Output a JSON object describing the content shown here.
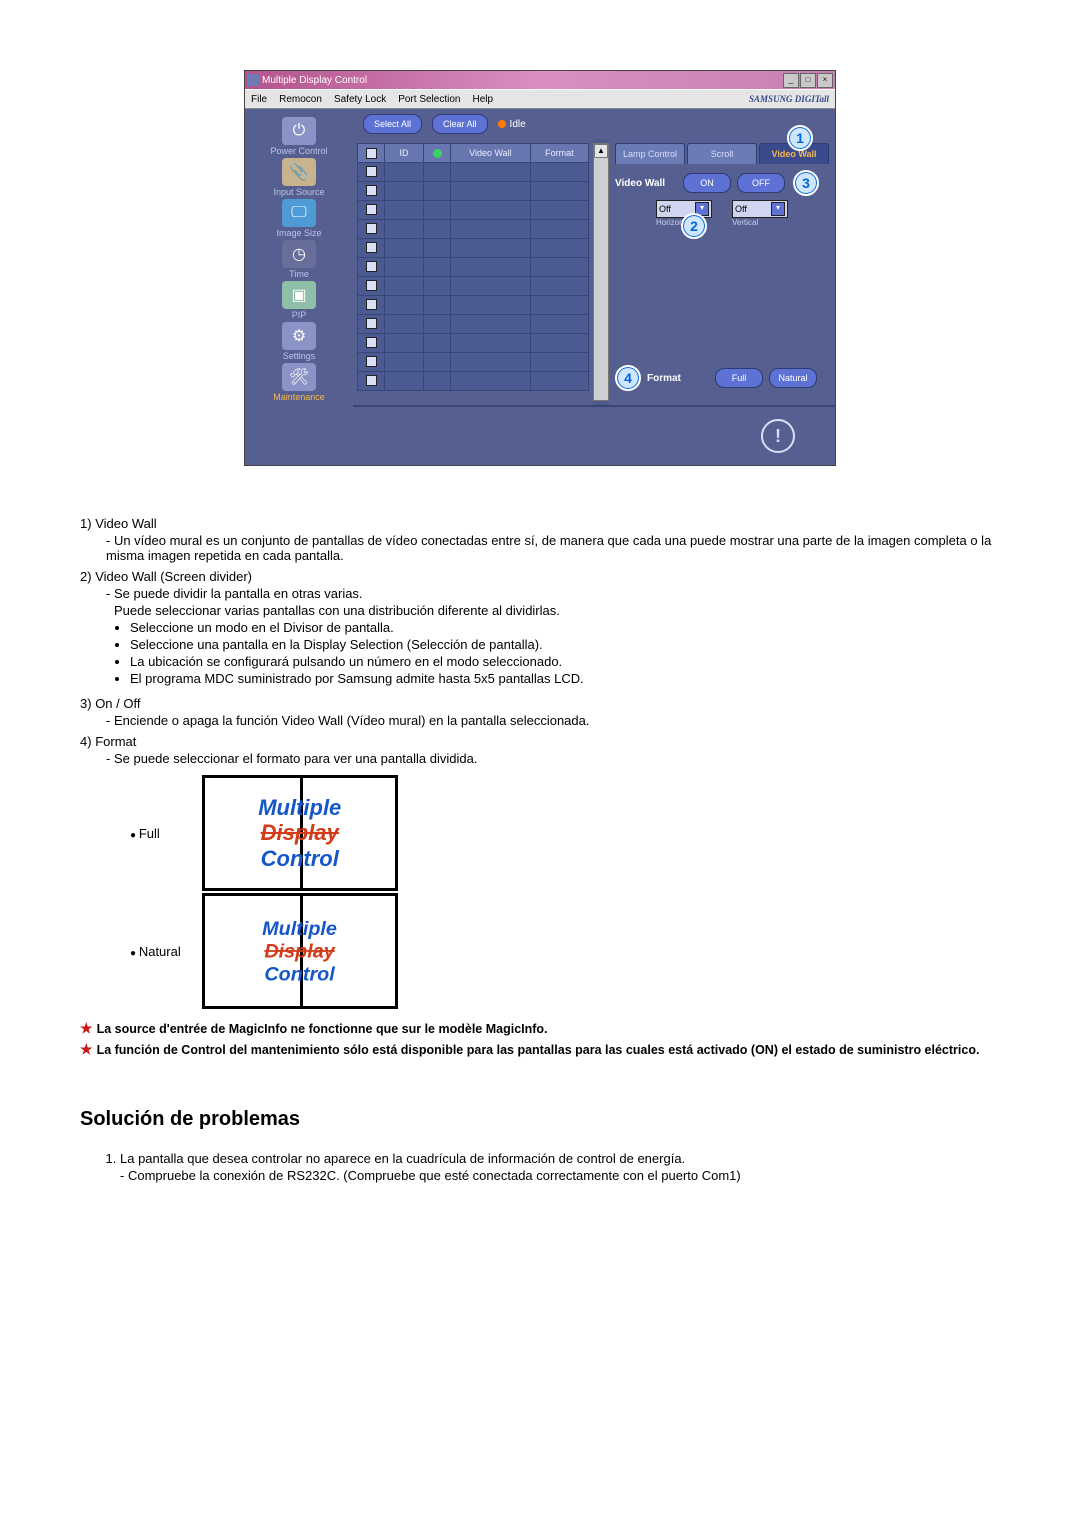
{
  "app": {
    "title": "Multiple Display Control",
    "brand": "SAMSUNG DIGITall",
    "menu": [
      "File",
      "Remocon",
      "Safety Lock",
      "Port Selection",
      "Help"
    ],
    "actions": {
      "select_all": "Select All",
      "clear_all": "Clear All",
      "idle": "Idle"
    },
    "sidebar": [
      {
        "label": "Power Control",
        "icon": "⏻"
      },
      {
        "label": "Input Source",
        "icon": "📎"
      },
      {
        "label": "Image Size",
        "icon": "🖵"
      },
      {
        "label": "Time",
        "icon": "◷"
      },
      {
        "label": "PIP",
        "icon": "▣"
      },
      {
        "label": "Settings",
        "icon": "⚙"
      },
      {
        "label": "Maintenance",
        "icon": "🛠",
        "selected": true
      }
    ],
    "columns": [
      "",
      "ID",
      "",
      "Video Wall",
      "Format"
    ],
    "tabs": [
      "Lamp Control",
      "Scroll",
      "Video Wall"
    ],
    "panel": {
      "vw_label": "Video Wall",
      "on": "ON",
      "off": "OFF",
      "dd_horizontal": "Off",
      "dd_vertical": "Off",
      "lbl_horizontal": "Horizontal",
      "lbl_vertical": "Vertical",
      "format_label": "Format",
      "full": "Full",
      "natural": "Natural"
    },
    "callouts": [
      "1",
      "2",
      "3",
      "4"
    ]
  },
  "doc": {
    "items": [
      {
        "num": "1)",
        "title": "Video Wall",
        "dash": "Un vídeo mural es un conjunto de pantallas de vídeo conectadas entre sí, de manera que cada una puede mostrar una parte de la imagen completa o la misma imagen repetida en cada pantalla."
      },
      {
        "num": "2)",
        "title": "Video Wall (Screen divider)",
        "dash": "Se puede dividir la pantalla en otras varias.",
        "dash2": "Puede seleccionar varias pantallas con una distribución diferente al dividirlas.",
        "bullets": [
          "Seleccione un modo en el Divisor de pantalla.",
          "Seleccione una pantalla en la Display Selection (Selección de pantalla).",
          "La ubicación se configurará pulsando un número en el modo seleccionado.",
          "El programa MDC suministrado por Samsung admite hasta 5x5 pantallas LCD."
        ]
      },
      {
        "num": "3)",
        "title": "On / Off",
        "dash": "Enciende o apaga la función Video Wall (Vídeo mural) en la pantalla seleccionada."
      },
      {
        "num": "4)",
        "title": "Format",
        "dash": "Se puede seleccionar el formato para ver una pantalla dividida."
      }
    ],
    "format_labels": {
      "full": "Full",
      "natural": "Natural"
    },
    "format_box_text": [
      "Multiple",
      "Display",
      "Control"
    ],
    "star_notes": [
      "La source d'entrée de MagicInfo ne fonctionne que sur le modèle MagicInfo.",
      "La función de Control del mantenimiento sólo está disponible para las pantallas para las cuales está activado (ON) el estado de suministro eléctrico."
    ],
    "heading": "Solución de problemas",
    "trouble": [
      {
        "t": "La pantalla que desea controlar no aparece en la cuadrícula de información de control de energía.",
        "sub": "Compruebe la conexión de RS232C. (Compruebe que esté conectada correctamente con el puerto Com1)"
      }
    ]
  }
}
